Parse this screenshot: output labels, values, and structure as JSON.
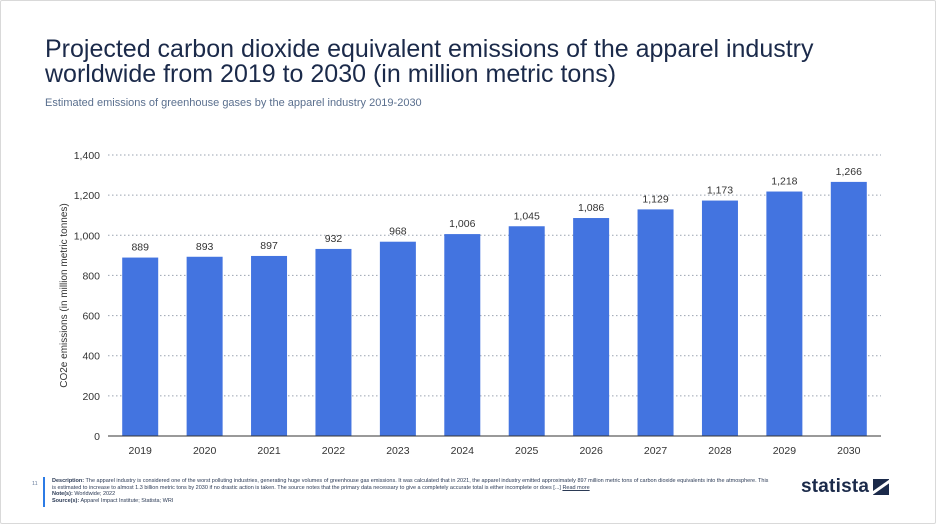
{
  "header": {
    "title": "Projected carbon dioxide equivalent emissions of the apparel industry worldwide from 2019 to 2030 (in million metric tons)",
    "subtitle": "Estimated emissions of greenhouse gases by the apparel industry 2019-2030"
  },
  "chart_data": {
    "type": "bar",
    "categories": [
      "2019",
      "2020",
      "2021",
      "2022",
      "2023",
      "2024",
      "2025",
      "2026",
      "2027",
      "2028",
      "2029",
      "2030"
    ],
    "values": [
      889,
      893,
      897,
      932,
      968,
      1006,
      1045,
      1086,
      1129,
      1173,
      1218,
      1266
    ],
    "value_labels": [
      "889",
      "893",
      "897",
      "932",
      "968",
      "1,006",
      "1,045",
      "1,086",
      "1,129",
      "1,173",
      "1,218",
      "1,266"
    ],
    "yticks": [
      0,
      200,
      400,
      600,
      800,
      1000,
      1200,
      1400
    ],
    "ytick_labels": [
      "0",
      "200",
      "400",
      "600",
      "800",
      "1,000",
      "1,200",
      "1,400"
    ],
    "ylabel": "CO2e emissions (in million metric tonnes)",
    "xlabel": "",
    "ylim": [
      0,
      1400
    ],
    "grid": "horizontal dotted",
    "bar_color": "#4374e0"
  },
  "footer": {
    "page_number": "11",
    "description_label": "Description:",
    "description": "The apparel industry is considered one of the worst polluting industries, generating huge volumes of greenhouse gas emissions. It was calculated that in 2021, the apparel industry emitted approximately 897 million metric tons of carbon dioxide equivalents into the atmosphere. This is estimated to increase to almost 1.3 billion metric tons by 2030 if no drastic action is taken. The source notes that the primary data necessary to give a completely accurate total is either incomplete or does [...]",
    "read_more": "Read more",
    "notes_label": "Note(s):",
    "notes": "Worldwide; 2022",
    "sources_label": "Source(s):",
    "sources": "Apparel Impact Institute; Statista; WRI"
  },
  "brand": {
    "logo_text": "statista",
    "logo_icon": "statista-logo-icon"
  }
}
